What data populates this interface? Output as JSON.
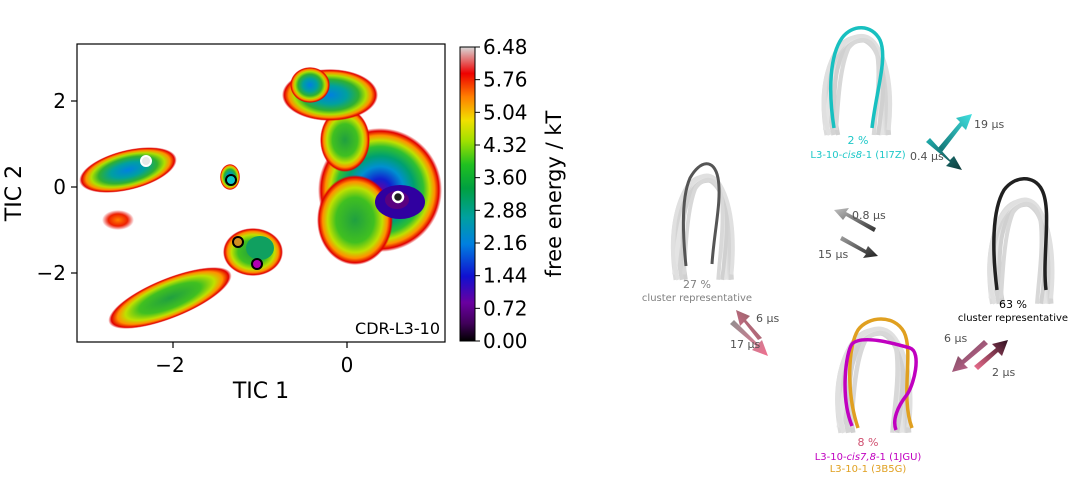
{
  "landscape": {
    "xlabel": "TIC 1",
    "ylabel": "TIC 2",
    "x_ticks": [
      "−2",
      "0"
    ],
    "y_ticks": [
      "2",
      "0",
      "−2"
    ],
    "inset_label": "CDR-L3-10"
  },
  "colorbar": {
    "label": "free energy / kT",
    "ticks": [
      "6.48",
      "5.76",
      "5.04",
      "4.32",
      "3.60",
      "2.88",
      "2.16",
      "1.44",
      "0.72",
      "0.00"
    ]
  },
  "structures": {
    "top": {
      "percent": "2 %",
      "name_prefix": "L3-10-",
      "name_italic": "cis8",
      "name_suffix": "-1 (1I7Z)",
      "color": "#1ec8c8"
    },
    "left": {
      "percent": "27 %",
      "caption": "cluster representative",
      "color": "#808080"
    },
    "right": {
      "percent": "63 %",
      "caption": "cluster representative",
      "color": "#000000"
    },
    "bottom": {
      "percent": "8 %",
      "name1_prefix": "L3-10-",
      "name1_italic": "cis7,8",
      "name1_suffix": "-1 (1JGU)",
      "name2": "L3-10-1 (3B5G)",
      "percent_color": "#d05070",
      "name1_color": "#c000c0",
      "name2_color": "#e0a020"
    }
  },
  "rates": {
    "top_right_up": "19 µs",
    "top_right_down": "0.4 µs",
    "center_up": "0.8 µs",
    "center_down": "15 µs",
    "left_up": "6 µs",
    "left_down": "17 µs",
    "right_up": "6 µs",
    "right_down": "2 µs"
  }
}
